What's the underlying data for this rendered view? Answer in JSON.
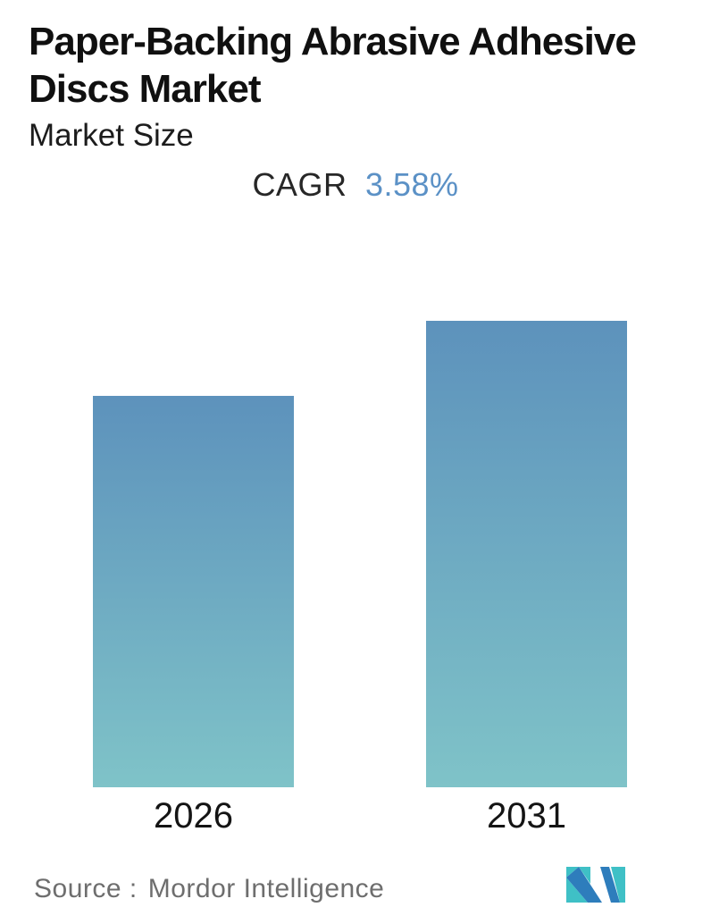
{
  "header": {
    "title": "Paper-Backing Abrasive Adhesive Discs Market",
    "title_line1": "Paper-Backing Abrasive Adhesive",
    "title_line2": "Discs Market",
    "subtitle": "Market Size",
    "cagr_label": "CAGR",
    "cagr_value": "3.58%"
  },
  "chart_data": {
    "type": "bar",
    "title": "Paper-Backing Abrasive Adhesive Discs Market",
    "subtitle": "Market Size",
    "annotation": "CAGR 3.58%",
    "categories": [
      "2026",
      "2031"
    ],
    "values": [
      1.0,
      1.192
    ],
    "values_note": "relative market size; no numeric value axis shown; 2031 = 2026 x (1.0358^5)",
    "xlabel": "",
    "ylabel": "",
    "value_axis_visible": false,
    "gridlines": false,
    "legend": "none",
    "bar_gradient": {
      "top": "#5d92bc",
      "bottom": "#7fc3c8"
    }
  },
  "footer": {
    "source_label": "Source :",
    "source_value": "Mordor Intelligence",
    "logo": "mordor-intelligence-logo"
  },
  "colors": {
    "title_text": "#101010",
    "cagr_value_blue": "#5b91c6",
    "bar_top": "#5d92bc",
    "bar_bottom": "#7fc3c8",
    "source_gray": "#6e6e6e",
    "logo_blue": "#2e7dbc",
    "logo_teal": "#3fc0c6"
  }
}
